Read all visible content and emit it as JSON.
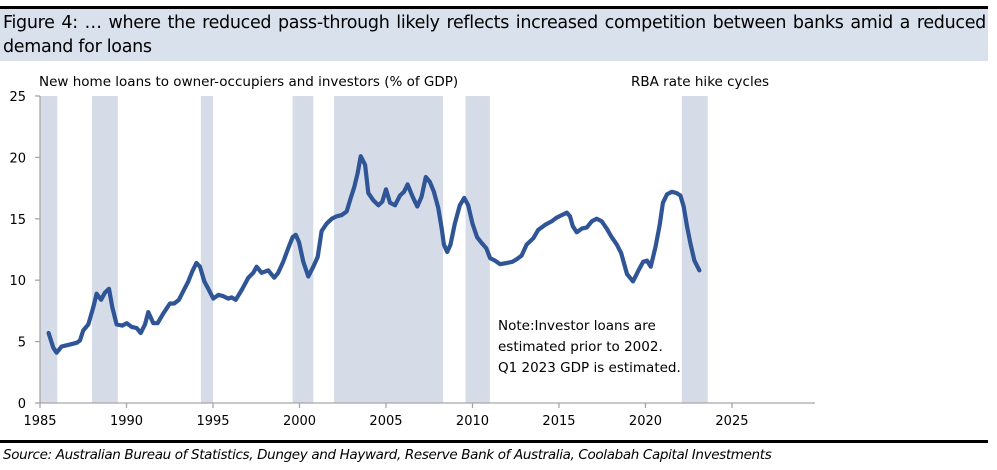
{
  "figure": {
    "title": "Figure 4: … where the reduced pass-through likely reflects increased competition between banks amid a reduced demand for loans",
    "source": "Source: Australian Bureau of Statistics, Dungey and Hayward, Reserve Bank of Australia, Coolabah Capital Investments"
  },
  "colors": {
    "header_bg": "#d9e1ed",
    "line": "#2f5597",
    "band": "#d5dce7",
    "axis": "#a6a6a6"
  },
  "chart_data": {
    "type": "line",
    "title": "New home loans to owner-occupiers and investors (% of GDP)",
    "xlabel": "",
    "ylabel": "",
    "xlim": [
      1985,
      2029.8
    ],
    "ylim": [
      0,
      25
    ],
    "xticks": [
      1985,
      1990,
      1995,
      2000,
      2005,
      2010,
      2015,
      2020,
      2025
    ],
    "yticks": [
      0,
      5,
      10,
      15,
      20,
      25
    ],
    "grid": false,
    "legend": "none",
    "shaded_bands_label": "RBA rate hike cycles",
    "shaded_bands": [
      [
        1985.0,
        1986.0
      ],
      [
        1988.0,
        1989.5
      ],
      [
        1994.3,
        1995.0
      ],
      [
        1999.6,
        2000.8
      ],
      [
        2002.0,
        2008.3
      ],
      [
        2009.6,
        2011.0
      ],
      [
        2022.1,
        2023.6
      ]
    ],
    "annotations": [
      "Note:Investor loans are",
      "estimated prior to 2002.",
      "Q1 2023 GDP is estimated."
    ],
    "series": [
      {
        "name": "New home loans (% of GDP)",
        "x": [
          1985.5,
          1985.77,
          1985.96,
          1986.25,
          1986.54,
          1987.12,
          1987.31,
          1987.5,
          1987.79,
          1988.08,
          1988.27,
          1988.53,
          1988.76,
          1988.99,
          1989.18,
          1989.43,
          1989.76,
          1990.01,
          1990.3,
          1990.59,
          1990.82,
          1991.07,
          1991.26,
          1991.55,
          1991.8,
          1992.13,
          1992.51,
          1992.76,
          1993.03,
          1993.28,
          1993.57,
          1993.8,
          1994.04,
          1994.25,
          1994.5,
          1994.73,
          1995.02,
          1995.31,
          1995.6,
          1995.88,
          1996.08,
          1996.31,
          1996.66,
          1997.04,
          1997.33,
          1997.52,
          1997.81,
          1998.2,
          1998.54,
          1998.77,
          1999.06,
          1999.35,
          1999.6,
          1999.78,
          1999.97,
          2000.22,
          2000.51,
          2000.8,
          2001.05,
          2001.28,
          2001.57,
          2001.86,
          2002.15,
          2002.44,
          2002.73,
          2002.92,
          2003.17,
          2003.36,
          2003.54,
          2003.79,
          2003.98,
          2004.27,
          2004.56,
          2004.79,
          2005.0,
          2005.23,
          2005.52,
          2005.81,
          2006.04,
          2006.25,
          2006.54,
          2006.81,
          2007.06,
          2007.3,
          2007.54,
          2007.77,
          2008.02,
          2008.22,
          2008.35,
          2008.54,
          2008.73,
          2008.98,
          2009.27,
          2009.52,
          2009.75,
          2010.0,
          2010.27,
          2010.55,
          2010.8,
          2011.02,
          2011.3,
          2011.59,
          2011.98,
          2012.3,
          2012.55,
          2012.84,
          2013.13,
          2013.51,
          2013.8,
          2014.19,
          2014.58,
          2014.87,
          2015.16,
          2015.45,
          2015.64,
          2015.8,
          2016.03,
          2016.32,
          2016.61,
          2016.9,
          2017.18,
          2017.47,
          2017.76,
          2018.05,
          2018.34,
          2018.6,
          2018.93,
          2019.28,
          2019.6,
          2019.87,
          2020.09,
          2020.3,
          2020.58,
          2020.82,
          2021.01,
          2021.25,
          2021.53,
          2021.79,
          2022.02,
          2022.21,
          2022.4,
          2022.6,
          2022.83,
          2023.12
        ],
        "y": [
          5.7,
          4.5,
          4.1,
          4.6,
          4.7,
          4.9,
          5.1,
          5.9,
          6.4,
          7.8,
          8.9,
          8.4,
          9.0,
          9.3,
          7.8,
          6.4,
          6.3,
          6.5,
          6.2,
          6.1,
          5.7,
          6.4,
          7.4,
          6.5,
          6.5,
          7.3,
          8.1,
          8.1,
          8.4,
          9.1,
          9.9,
          10.7,
          11.4,
          11.1,
          9.9,
          9.3,
          8.5,
          8.8,
          8.7,
          8.5,
          8.6,
          8.4,
          9.2,
          10.2,
          10.6,
          11.1,
          10.6,
          10.8,
          10.2,
          10.6,
          11.5,
          12.6,
          13.5,
          13.7,
          13.1,
          11.5,
          10.3,
          11.1,
          11.9,
          14.0,
          14.6,
          15.0,
          15.2,
          15.3,
          15.6,
          16.5,
          17.6,
          18.7,
          20.1,
          19.4,
          17.1,
          16.5,
          16.1,
          16.4,
          17.4,
          16.3,
          16.1,
          16.9,
          17.2,
          17.8,
          16.8,
          16.0,
          16.8,
          18.4,
          18.0,
          17.2,
          15.9,
          14.2,
          12.9,
          12.3,
          12.9,
          14.6,
          16.1,
          16.7,
          16.1,
          14.6,
          13.5,
          13.0,
          12.6,
          11.8,
          11.6,
          11.3,
          11.4,
          11.5,
          11.7,
          12.0,
          12.9,
          13.4,
          14.1,
          14.5,
          14.8,
          15.1,
          15.3,
          15.5,
          15.2,
          14.4,
          13.9,
          14.2,
          14.3,
          14.8,
          15.0,
          14.8,
          14.2,
          13.5,
          12.9,
          12.2,
          10.5,
          9.9,
          10.8,
          11.5,
          11.6,
          11.1,
          12.7,
          14.5,
          16.3,
          17.0,
          17.2,
          17.1,
          16.9,
          16.0,
          14.4,
          13.0,
          11.6,
          10.8
        ]
      }
    ]
  }
}
